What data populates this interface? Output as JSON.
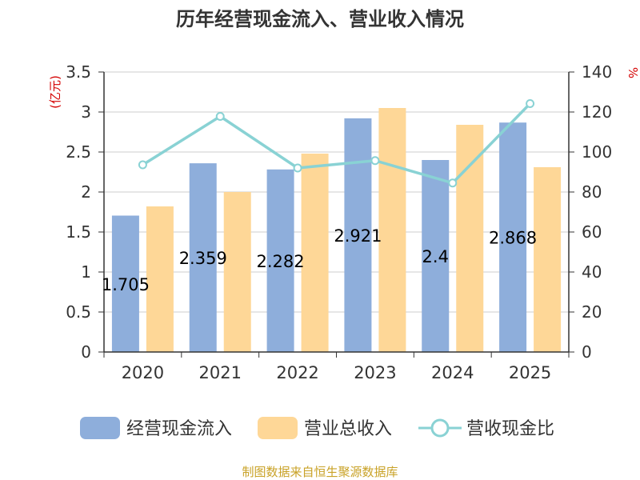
{
  "chart_data": {
    "type": "bar",
    "title": "历年经营现金流入、营业收入情况",
    "categories": [
      "2020",
      "2021",
      "2022",
      "2023",
      "2024",
      "2025"
    ],
    "series": [
      {
        "name": "经营现金流入",
        "kind": "bar",
        "axis": "left",
        "color": "#8eaedb",
        "values": [
          1.705,
          2.359,
          2.282,
          2.921,
          2.4,
          2.868
        ]
      },
      {
        "name": "营业总收入",
        "kind": "bar",
        "axis": "left",
        "color": "#fed797",
        "values": [
          1.82,
          2.0,
          2.48,
          3.05,
          2.84,
          2.31
        ]
      },
      {
        "name": "营收现金比",
        "kind": "line",
        "axis": "right",
        "color": "#89d2d4",
        "values": [
          93.6,
          117.8,
          92.0,
          95.7,
          84.5,
          124.2
        ]
      }
    ],
    "data_labels": [
      "1.705",
      "2.359",
      "2.282",
      "2.921",
      "2.4",
      "2.868"
    ],
    "y_left": {
      "label": "(亿元)",
      "min": 0,
      "max": 3.5,
      "ticks": [
        "0",
        "0.5",
        "1",
        "1.5",
        "2",
        "2.5",
        "3",
        "3.5"
      ]
    },
    "y_right": {
      "label": "%",
      "min": 0,
      "max": 140,
      "ticks": [
        "0",
        "20",
        "40",
        "60",
        "80",
        "100",
        "120",
        "140"
      ]
    },
    "grid": true,
    "legend_position": "bottom",
    "source": "制图数据来自恒生聚源数据库"
  }
}
